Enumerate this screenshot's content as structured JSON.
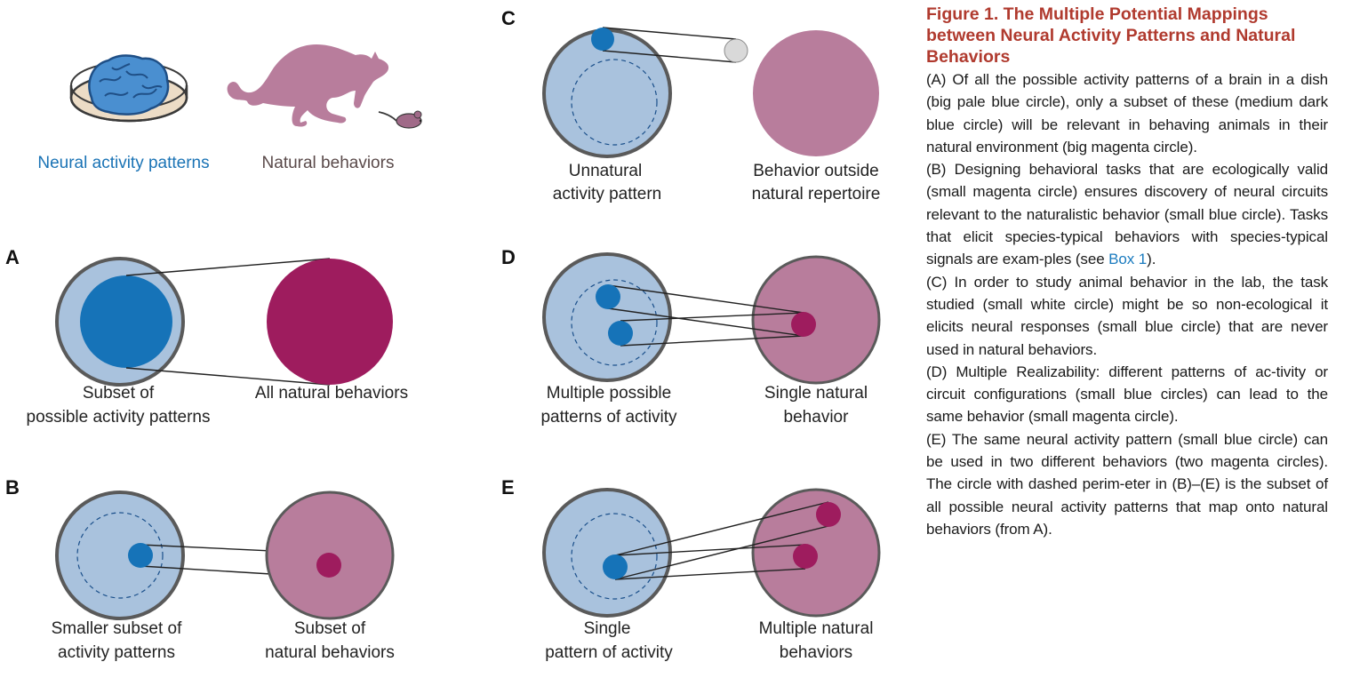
{
  "top": {
    "neural_label": "Neural activity patterns",
    "behavior_label": "Natural behaviors"
  },
  "panels": [
    {
      "letter": "A",
      "left_label": [
        "Subset of",
        "possible activity patterns"
      ],
      "right_label": [
        "All natural behaviors"
      ]
    },
    {
      "letter": "B",
      "left_label": [
        "Smaller subset of",
        "activity patterns"
      ],
      "right_label": [
        "Subset of",
        "natural behaviors"
      ]
    },
    {
      "letter": "C",
      "left_label": [
        "Unnatural",
        "activity pattern"
      ],
      "right_label": [
        "Behavior outside",
        "natural repertoire"
      ]
    },
    {
      "letter": "D",
      "left_label": [
        "Multiple possible",
        "patterns of activity"
      ],
      "right_label": [
        "Single natural",
        "behavior"
      ]
    },
    {
      "letter": "E",
      "left_label": [
        "Single",
        "pattern of activity"
      ],
      "right_label": [
        "Multiple natural",
        "behaviors"
      ]
    }
  ],
  "caption": {
    "title": "Figure 1. The Multiple Potential Mappings between Neural Activity Patterns and Natural Behaviors",
    "A": "(A) Of all the possible activity patterns of a brain in a dish (big pale blue circle), only a subset of these (medium dark blue circle) will be relevant in behaving animals in their natural environment (big magenta circle).",
    "B_before": "(B) Designing behavioral tasks that are ecologically valid (small magenta circle) ensures discovery of neural circuits relevant to the naturalistic behavior (small blue circle). Tasks that elicit species-typical behaviors with species-typical signals are exam-ples (see ",
    "B_link": "Box 1",
    "B_after": ").",
    "C": "(C) In order to study animal behavior in the lab, the task studied (small white circle) might be so non-ecological it elicits neural responses (small blue circle) that are never used in natural behaviors.",
    "D": "(D) Multiple Realizability: different patterns of ac-tivity or circuit configurations (small blue circles) can lead to the same behavior (small magenta circle).",
    "E": "(E) The same neural activity pattern (small blue circle) can be used in two different behaviors (two magenta circles). The circle with dashed perim-eter in (B)–(E) is the subset of all possible neural activity patterns that map onto natural behaviors (from A)."
  },
  "colors": {
    "pale_blue": "#a9c2dd",
    "circle_stroke": "#5a5a5a",
    "dark_blue": "#1673b8",
    "magenta_dark": "#9e1c5e",
    "magenta_pale": "#b87d9c",
    "neural_label": "#1a73b5",
    "behavior_label": "#5a4a4a",
    "grey_small": "#d9d9d9"
  },
  "icons": [
    "brain-in-dish-icon",
    "cat-icon",
    "mouse-icon"
  ]
}
